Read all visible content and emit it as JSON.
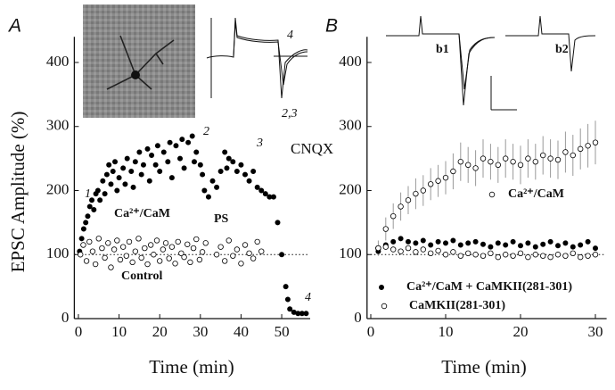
{
  "chart_data": [
    {
      "type": "scatter",
      "panel": "A",
      "xlabel": "Time (min)",
      "ylabel": "EPSC Amplitude (%)",
      "xlim": [
        -1,
        57
      ],
      "ylim": [
        0,
        440
      ],
      "xticks": [
        0,
        10,
        20,
        30,
        40,
        50
      ],
      "yticks": [
        0,
        100,
        200,
        300,
        400
      ],
      "reference_line": 100,
      "annotations": [
        "1",
        "2",
        "3",
        "4",
        "PS",
        "CNQX",
        "4",
        "2,3"
      ],
      "series": [
        {
          "name": "Ca²⁺/CaM",
          "color": "#000000",
          "marker": "filled",
          "x": [
            0.3,
            0.8,
            1.3,
            1.8,
            2.3,
            2.8,
            3.3,
            3.8,
            4.3,
            4.8,
            5.3,
            6,
            6.5,
            7,
            7.5,
            8,
            8.5,
            9,
            9.5,
            10,
            11,
            11.5,
            12,
            13,
            13.5,
            14,
            15,
            15.5,
            16,
            17,
            17.5,
            18,
            19,
            19.5,
            20,
            21,
            22,
            22.5,
            23,
            24,
            25,
            25.5,
            26,
            27,
            28,
            28.5,
            29,
            30,
            30.5,
            31,
            32,
            33,
            34,
            35,
            36,
            36.5,
            37,
            38,
            39,
            40,
            41,
            42,
            43,
            44,
            45,
            46,
            47,
            48,
            49,
            50,
            51,
            51.5,
            52,
            53,
            54,
            55,
            56
          ],
          "values": [
            105,
            125,
            140,
            150,
            160,
            175,
            185,
            170,
            195,
            200,
            185,
            215,
            195,
            225,
            240,
            210,
            230,
            245,
            200,
            220,
            235,
            210,
            250,
            230,
            205,
            245,
            260,
            225,
            240,
            265,
            215,
            255,
            240,
            270,
            230,
            260,
            245,
            275,
            220,
            270,
            250,
            280,
            235,
            275,
            285,
            245,
            260,
            240,
            225,
            200,
            190,
            215,
            205,
            230,
            260,
            235,
            250,
            245,
            230,
            240,
            225,
            215,
            230,
            205,
            200,
            195,
            190,
            190,
            150,
            100,
            50,
            30,
            15,
            10,
            8,
            8,
            8
          ]
        },
        {
          "name": "Control",
          "color": "#000000",
          "marker": "open",
          "x": [
            0.5,
            1.2,
            2,
            2.7,
            3.5,
            4.2,
            5,
            5.8,
            6.5,
            7.3,
            8,
            8.8,
            9.5,
            10.3,
            11,
            11.8,
            12.5,
            13.3,
            14,
            14.8,
            15.5,
            16.3,
            17,
            17.8,
            18.5,
            19.3,
            20,
            20.8,
            21.5,
            22.3,
            23,
            23.8,
            24.5,
            25.3,
            26,
            26.8,
            27.5,
            28.3,
            29,
            29.8,
            30.5,
            31.3,
            34,
            35,
            36,
            37,
            38,
            39,
            40,
            41,
            42,
            43,
            44,
            45
          ],
          "values": [
            100,
            115,
            90,
            120,
            105,
            85,
            125,
            110,
            95,
            118,
            80,
            108,
            122,
            92,
            112,
            98,
            120,
            88,
            105,
            125,
            95,
            110,
            85,
            115,
            100,
            122,
            90,
            108,
            118,
            94,
            112,
            86,
            120,
            102,
            96,
            116,
            88,
            110,
            124,
            92,
            104,
            118,
            100,
            112,
            90,
            122,
            98,
            108,
            86,
            115,
            102,
            94,
            120,
            105
          ]
        }
      ]
    },
    {
      "type": "scatter",
      "panel": "B",
      "xlabel": "Time (min)",
      "xlim": [
        -0.5,
        31.5
      ],
      "ylim": [
        0,
        440
      ],
      "xticks": [
        0,
        10,
        20,
        30
      ],
      "yticks": [
        0,
        100,
        200,
        300,
        400
      ],
      "reference_line": 100,
      "annotations": [
        "b1",
        "b2"
      ],
      "series": [
        {
          "name": "Ca²⁺/CaM",
          "color": "#000000",
          "marker": "open",
          "x": [
            1,
            2,
            3,
            4,
            5,
            6,
            7,
            8,
            9,
            10,
            11,
            12,
            13,
            14,
            15,
            16,
            17,
            18,
            19,
            20,
            21,
            22,
            23,
            24,
            25,
            26,
            27,
            28,
            29,
            30
          ],
          "values": [
            110,
            140,
            160,
            175,
            185,
            195,
            200,
            210,
            215,
            220,
            230,
            245,
            240,
            235,
            250,
            245,
            240,
            250,
            245,
            240,
            250,
            245,
            255,
            250,
            248,
            260,
            255,
            265,
            270,
            275
          ],
          "errors": [
            12,
            18,
            20,
            22,
            22,
            24,
            24,
            25,
            25,
            26,
            28,
            30,
            28,
            28,
            30,
            28,
            28,
            30,
            28,
            30,
            30,
            28,
            30,
            30,
            30,
            32,
            32,
            32,
            34,
            34
          ]
        },
        {
          "name": "Ca²⁺/CaM + CaMKII(281-301)",
          "color": "#000000",
          "marker": "filled",
          "x": [
            1,
            2,
            3,
            4,
            5,
            6,
            7,
            8,
            9,
            10,
            11,
            12,
            13,
            14,
            15,
            16,
            17,
            18,
            19,
            20,
            21,
            22,
            23,
            24,
            25,
            26,
            27,
            28,
            29,
            30
          ],
          "values": [
            105,
            115,
            120,
            125,
            120,
            118,
            122,
            115,
            120,
            118,
            122,
            115,
            118,
            120,
            116,
            112,
            118,
            115,
            120,
            114,
            118,
            112,
            116,
            120,
            114,
            118,
            112,
            115,
            120,
            110
          ]
        },
        {
          "name": "CaMKII(281-301)",
          "color": "#000000",
          "marker": "open",
          "x": [
            1,
            2,
            3,
            4,
            5,
            6,
            7,
            8,
            9,
            10,
            11,
            12,
            13,
            14,
            15,
            16,
            17,
            18,
            19,
            20,
            21,
            22,
            23,
            24,
            25,
            26,
            27,
            28,
            29,
            30
          ],
          "values": [
            110,
            112,
            108,
            105,
            110,
            104,
            108,
            102,
            106,
            100,
            104,
            98,
            102,
            100,
            98,
            102,
            96,
            100,
            98,
            102,
            96,
            100,
            98,
            96,
            100,
            98,
            102,
            96,
            98,
            100
          ]
        }
      ]
    }
  ]
}
